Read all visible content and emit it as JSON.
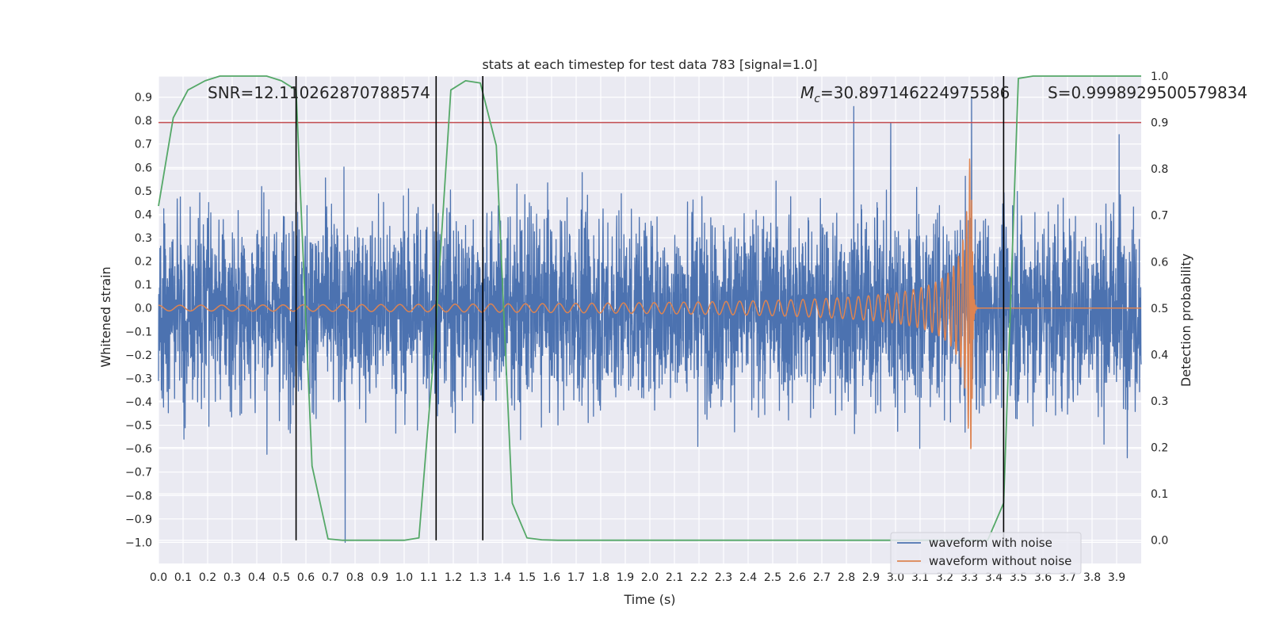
{
  "chart_data": {
    "type": "line",
    "title": "stats at each timestep for test data 783 [signal=1.0]",
    "xlabel": "Time (s)",
    "ylabel": "Whitened strain",
    "y2label": "Detection probability",
    "xlim": [
      0.0,
      4.0
    ],
    "ylim": [
      -1.09,
      0.99
    ],
    "y2lim": [
      -0.05,
      1.0
    ],
    "xticks": [
      0.0,
      0.1,
      0.2,
      0.3,
      0.4,
      0.5,
      0.6,
      0.7,
      0.8,
      0.9,
      1.0,
      1.1,
      1.2,
      1.3,
      1.4,
      1.5,
      1.6,
      1.7,
      1.8,
      1.9,
      2.0,
      2.1,
      2.2,
      2.3,
      2.4,
      2.5,
      2.6,
      2.7,
      2.8,
      2.9,
      3.0,
      3.1,
      3.2,
      3.3,
      3.4,
      3.5,
      3.6,
      3.7,
      3.8,
      3.9
    ],
    "xtick_labels": [
      "0.0",
      "0.1",
      "0.2",
      "0.3",
      "0.4",
      "0.5",
      "0.6",
      "0.7",
      "0.8",
      "0.9",
      "1.0",
      "1.1",
      "1.2",
      "1.3",
      "1.4",
      "1.5",
      "1.6",
      "1.7",
      "1.8",
      "1.9",
      "2.0",
      "2.1",
      "2.2",
      "2.3",
      "2.4",
      "2.5",
      "2.6",
      "2.7",
      "2.8",
      "2.9",
      "3.0",
      "3.1",
      "3.2",
      "3.3",
      "3.4",
      "3.5",
      "3.6",
      "3.7",
      "3.8",
      "3.9"
    ],
    "yticks": [
      0.9,
      0.8,
      0.7,
      0.6,
      0.5,
      0.4,
      0.3,
      0.2,
      0.1,
      0.0,
      -0.1,
      -0.2,
      -0.3,
      -0.4,
      -0.5,
      -0.6,
      -0.7,
      -0.8,
      -0.9,
      -1.0
    ],
    "ytick_labels": [
      "0.9",
      "0.8",
      "0.7",
      "0.6",
      "0.5",
      "0.4",
      "0.3",
      "0.2",
      "0.1",
      "0.0",
      "−0.1",
      "−0.2",
      "−0.3",
      "−0.4",
      "−0.5",
      "−0.6",
      "−0.7",
      "−0.8",
      "−0.9",
      "−1.0"
    ],
    "y2ticks": [
      1.0,
      0.9,
      0.8,
      0.7,
      0.6,
      0.5,
      0.4,
      0.3,
      0.2,
      0.1,
      0.0
    ],
    "y2tick_labels": [
      "1.0",
      "0.9",
      "0.8",
      "0.7",
      "0.6",
      "0.5",
      "0.4",
      "0.3",
      "0.2",
      "0.1",
      "0.0"
    ],
    "annotations": {
      "snr": "SNR=12.110262870788574",
      "mc": "=30.897146224975586",
      "s": "S=0.9998929500579834"
    },
    "series": [
      {
        "name": "waveform with noise",
        "color": "#4c72b0",
        "kind": "noise",
        "sample_rate": 1024,
        "amplitude_std": 0.2,
        "notable_peaks": [
          {
            "t": 0.76,
            "y": -1.0
          },
          {
            "t": 2.83,
            "y": 0.86
          },
          {
            "t": 2.98,
            "y": 0.79
          },
          {
            "t": 3.31,
            "y": 0.9
          },
          {
            "t": 3.91,
            "y": 0.74
          }
        ]
      },
      {
        "name": "waveform without noise",
        "color": "#dd8452",
        "kind": "chirp",
        "merger_time": 3.31,
        "peak_amplitude": 0.64,
        "min_amplitude": -0.6,
        "start_amplitude": 0.012
      },
      {
        "name": "detection probability",
        "color": "#55a868",
        "axis": "right",
        "x": [
          0.0,
          0.06,
          0.12,
          0.19,
          0.25,
          0.31,
          0.375,
          0.44,
          0.5,
          0.56,
          0.625,
          0.69,
          0.75,
          0.81,
          0.875,
          0.94,
          1.0,
          1.06,
          1.125,
          1.19,
          1.25,
          1.31,
          1.375,
          1.44,
          1.5,
          1.56,
          1.625,
          1.69,
          3.375,
          3.44,
          3.5,
          3.56,
          3.625,
          3.69,
          3.75,
          3.81,
          3.875,
          3.94,
          4.0
        ],
        "y": [
          0.72,
          0.91,
          0.97,
          0.99,
          1.0,
          1.0,
          1.0,
          1.0,
          0.99,
          0.97,
          0.16,
          0.003,
          0.0,
          0.0,
          0.0,
          0.0,
          0.0,
          0.005,
          0.43,
          0.97,
          0.99,
          0.985,
          0.85,
          0.08,
          0.005,
          0.001,
          0.0,
          0.0,
          0.0,
          0.08,
          0.995,
          1.0,
          1.0,
          1.0,
          1.0,
          1.0,
          1.0,
          1.0,
          1.0
        ]
      }
    ],
    "threshold": {
      "value": 0.9,
      "axis": "right",
      "color": "#c44e52"
    },
    "vertical_lines": [
      0.56,
      1.13,
      1.32,
      3.44
    ],
    "legend": {
      "location": "lower-right",
      "entries": [
        {
          "label": "waveform with noise",
          "color": "#4c72b0"
        },
        {
          "label": "waveform without noise",
          "color": "#dd8452"
        }
      ]
    }
  }
}
